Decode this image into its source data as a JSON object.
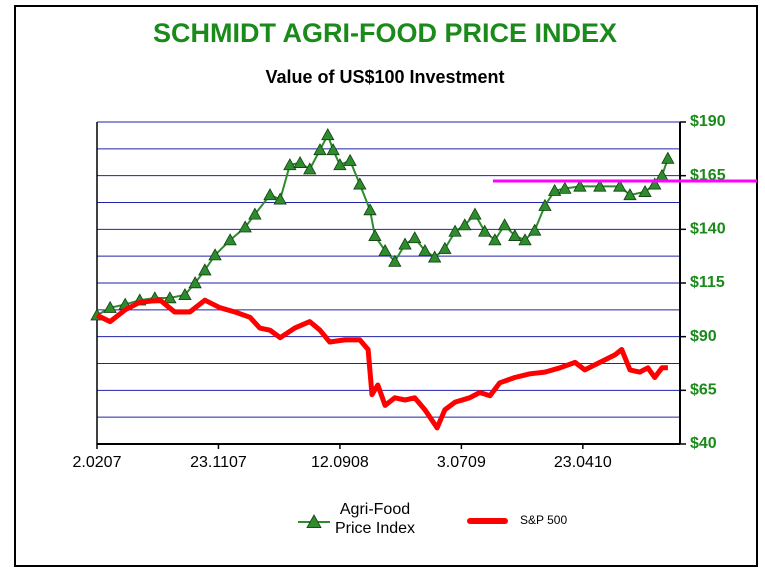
{
  "chart_data": {
    "type": "line",
    "title": "SCHMIDT AGRI-FOOD PRICE INDEX",
    "subtitle": "Value of US$100 Investment",
    "xlim": [
      0,
      120
    ],
    "xticks": [
      {
        "value": 0,
        "label": "2.0207"
      },
      {
        "value": 25,
        "label": "23.1107"
      },
      {
        "value": 50,
        "label": "12.0908"
      },
      {
        "value": 75,
        "label": "3.0709"
      },
      {
        "value": 100,
        "label": "23.0410"
      }
    ],
    "ylim": [
      40,
      190
    ],
    "yticks": [
      {
        "value": 40,
        "label": "$40"
      },
      {
        "value": 65,
        "label": "$65"
      },
      {
        "value": 90,
        "label": "$90"
      },
      {
        "value": 115,
        "label": "$115"
      },
      {
        "value": 140,
        "label": "$140"
      },
      {
        "value": 165,
        "label": "$165"
      },
      {
        "value": 190,
        "label": "$190"
      }
    ],
    "minor_yticks": [
      52.5,
      77.5,
      102.5,
      127.5,
      152.5,
      177.5
    ],
    "grid": true,
    "grid_color": "#2222aa",
    "axis_side": "right",
    "legend": "bottom",
    "series": [
      {
        "name": "Agri-Food Price Index",
        "color": "#2e8b2e",
        "marker": "triangle",
        "x": [
          0,
          2.7,
          5.8,
          8.8,
          11.9,
          15,
          18.1,
          20.2,
          22.2,
          24.3,
          27.4,
          30.5,
          32.5,
          35.6,
          37.7,
          39.7,
          41.8,
          43.8,
          45.9,
          47.5,
          48.6,
          50,
          52.1,
          54.1,
          56.2,
          57.2,
          59.3,
          61.3,
          63.4,
          65.4,
          67.5,
          69.5,
          71.6,
          73.7,
          75.7,
          77.8,
          79.8,
          81.9,
          83.9,
          86,
          88.1,
          90.1,
          92.2,
          94.2,
          96.3,
          99.4,
          103.5,
          107.6,
          109.7,
          112.8,
          114.8,
          116.3,
          117.5
        ],
        "values": [
          100,
          103.5,
          105,
          107,
          108,
          108,
          109.5,
          115,
          121,
          128,
          135,
          141,
          147,
          156,
          154,
          170,
          171,
          168,
          177,
          184,
          177,
          170,
          172,
          161,
          149,
          137,
          130,
          125,
          133,
          136,
          130,
          127,
          131,
          139,
          142,
          147,
          139,
          135,
          142,
          137,
          135,
          139.5,
          151,
          158,
          159,
          160,
          160,
          160,
          156,
          157.5,
          161,
          165,
          173
        ]
      },
      {
        "name": "S&P 500",
        "color": "#ff0000",
        "marker": "none",
        "x": [
          0,
          2.7,
          5.8,
          8.8,
          13,
          16,
          19.1,
          22.2,
          25.3,
          28.4,
          31.5,
          33.5,
          35.6,
          37.7,
          40.7,
          43.8,
          45.9,
          47.9,
          51,
          54.1,
          55.8,
          56.6,
          57.8,
          59.3,
          61.3,
          63.4,
          65.4,
          67.5,
          70,
          71.6,
          73.7,
          76.7,
          78.8,
          80.9,
          82.9,
          86,
          89.1,
          92.2,
          95.3,
          98.4,
          100.4,
          103.5,
          106.6,
          108,
          109.7,
          111.7,
          113.4,
          114.8,
          116.3,
          117.5
        ],
        "values": [
          100,
          97,
          102.5,
          106,
          107,
          101.5,
          101.5,
          107,
          103.5,
          101.5,
          99,
          94,
          93,
          89.5,
          94,
          97,
          93,
          87.5,
          88.5,
          88.5,
          84,
          63,
          67.5,
          58,
          61.5,
          60.5,
          61.5,
          56,
          47.5,
          56,
          59.5,
          61.5,
          64,
          62.5,
          68.5,
          71,
          72.7,
          73.5,
          75.5,
          78,
          74.5,
          78,
          81.5,
          84,
          74.5,
          73.5,
          75.5,
          71,
          75.5,
          75.5
        ]
      }
    ],
    "reference_line": {
      "value": 162.5,
      "x_start": 81.5,
      "color": "#ff00ff"
    }
  }
}
